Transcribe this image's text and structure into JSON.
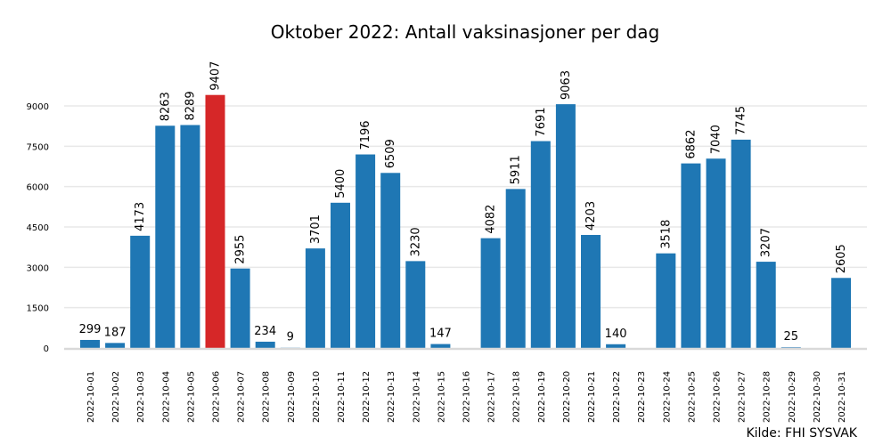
{
  "chart_data": {
    "type": "bar",
    "title": "Oktober 2022: Antall vaksinasjoner per dag",
    "xlabel": "",
    "ylabel": "",
    "ylim": [
      0,
      9500
    ],
    "yticks": [
      0,
      1500,
      3000,
      4500,
      6000,
      7500,
      9000
    ],
    "grid": "horizontal",
    "legend": "none",
    "source": "Kilde: FHI SYSVAK",
    "colors": {
      "default": "#1f77b4",
      "highlight": "#d62728",
      "grid": "#e8e8e8",
      "axis": "#d9d9d9"
    },
    "highlight_category": "2022-10-06",
    "categories": [
      "2022-10-01",
      "2022-10-02",
      "2022-10-03",
      "2022-10-04",
      "2022-10-05",
      "2022-10-06",
      "2022-10-07",
      "2022-10-08",
      "2022-10-09",
      "2022-10-10",
      "2022-10-11",
      "2022-10-12",
      "2022-10-13",
      "2022-10-14",
      "2022-10-15",
      "2022-10-16",
      "2022-10-17",
      "2022-10-18",
      "2022-10-19",
      "2022-10-20",
      "2022-10-21",
      "2022-10-22",
      "2022-10-23",
      "2022-10-24",
      "2022-10-25",
      "2022-10-26",
      "2022-10-27",
      "2022-10-28",
      "2022-10-29",
      "2022-10-30",
      "2022-10-31"
    ],
    "values": [
      299,
      187,
      4173,
      8263,
      8289,
      9407,
      2955,
      234,
      9,
      3701,
      5400,
      7196,
      6509,
      3230,
      147,
      null,
      4082,
      5911,
      7691,
      9063,
      4203,
      140,
      null,
      3518,
      6862,
      7040,
      7745,
      3207,
      25,
      null,
      2605
    ]
  }
}
